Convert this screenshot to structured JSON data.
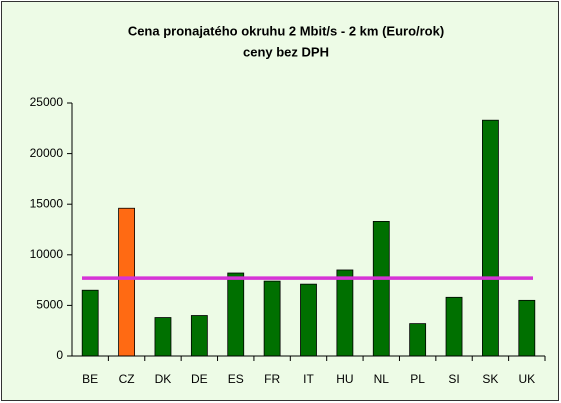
{
  "chart_data": {
    "type": "bar",
    "title": "Cena pronajatého okruhu 2 Mbit/s - 2 km  (Euro/rok)",
    "subtitle": "ceny bez DPH",
    "categories": [
      "BE",
      "CZ",
      "DK",
      "DE",
      "ES",
      "FR",
      "IT",
      "HU",
      "NL",
      "PL",
      "SI",
      "SK",
      "UK"
    ],
    "values": [
      6500,
      14600,
      3800,
      4000,
      8200,
      7400,
      7100,
      8500,
      13300,
      3200,
      5800,
      23300,
      5500
    ],
    "colors": [
      "#007000",
      "#ff6a13",
      "#007000",
      "#007000",
      "#007000",
      "#007000",
      "#007000",
      "#007000",
      "#007000",
      "#007000",
      "#007000",
      "#007000",
      "#007000"
    ],
    "reference_line": {
      "value": 7700,
      "color": "#d633d6"
    },
    "ylim": [
      0,
      25000
    ],
    "yticks": [
      0,
      5000,
      10000,
      15000,
      20000,
      25000
    ],
    "grid": false
  }
}
